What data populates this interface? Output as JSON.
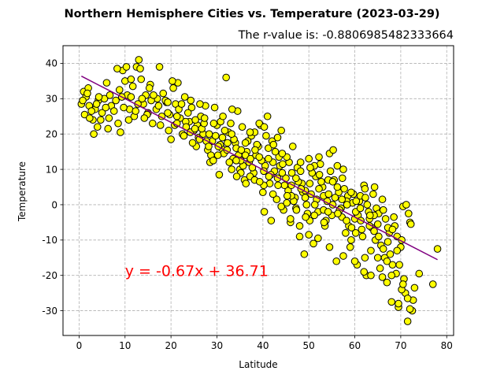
{
  "chart_data": {
    "type": "scatter",
    "title": "Northern Hemisphere Cities vs. Temperature (2023-03-29)",
    "subtitle": "The r-value is: -0.8806985482333664",
    "xlabel": "Latitude",
    "ylabel": "Temperature",
    "xlim": [
      -3.5,
      81.5
    ],
    "ylim": [
      -37,
      45
    ],
    "xticks": [
      0,
      10,
      20,
      30,
      40,
      50,
      60,
      70,
      80
    ],
    "yticks": [
      -30,
      -20,
      -10,
      0,
      10,
      20,
      30,
      40
    ],
    "grid": true,
    "marker_color": "#ffff00",
    "marker_edge_color": "#000000",
    "regression": {
      "slope": -0.67,
      "intercept": 36.71,
      "x_range": [
        0.5,
        78
      ],
      "color": "#800080",
      "equation": "y = -0.67x + 36.71",
      "equation_color": "#ff0000",
      "equation_position": [
        10,
        -20
      ]
    },
    "points": [
      [
        0.5,
        28.5
      ],
      [
        1.0,
        32.0
      ],
      [
        1.2,
        25.5
      ],
      [
        1.5,
        30.5
      ],
      [
        2.0,
        33.0
      ],
      [
        2.2,
        28.0
      ],
      [
        3.0,
        24.0
      ],
      [
        3.5,
        27.0
      ],
      [
        3.2,
        20.0
      ],
      [
        4.0,
        22.0
      ],
      [
        4.2,
        29.5
      ],
      [
        5.0,
        26.0
      ],
      [
        5.5,
        30.0
      ],
      [
        6.0,
        34.5
      ],
      [
        6.5,
        24.5
      ],
      [
        7.0,
        28.0
      ],
      [
        8.0,
        29.5
      ],
      [
        8.5,
        23.0
      ],
      [
        9.0,
        20.5
      ],
      [
        9.5,
        38.0
      ],
      [
        10.0,
        35.0
      ],
      [
        10.5,
        31.0
      ],
      [
        11.0,
        27.0
      ],
      [
        12.0,
        25.0
      ],
      [
        12.5,
        39.0
      ],
      [
        13.0,
        41.0
      ],
      [
        13.5,
        35.5
      ],
      [
        14.0,
        28.5
      ],
      [
        14.5,
        31.0
      ],
      [
        15.0,
        26.0
      ],
      [
        15.5,
        34.0
      ],
      [
        16.0,
        23.0
      ],
      [
        17.0,
        30.0
      ],
      [
        17.5,
        39.0
      ],
      [
        18.0,
        25.0
      ],
      [
        19.0,
        29.0
      ],
      [
        19.5,
        21.0
      ],
      [
        20.0,
        18.5
      ],
      [
        20.5,
        33.0
      ],
      [
        21.0,
        28.5
      ],
      [
        21.5,
        34.5
      ],
      [
        22.0,
        24.5
      ],
      [
        22.5,
        20.0
      ],
      [
        23.0,
        30.5
      ],
      [
        24.0,
        23.5
      ],
      [
        24.5,
        27.5
      ],
      [
        25.0,
        21.0
      ],
      [
        25.5,
        16.5
      ],
      [
        26.0,
        19.0
      ],
      [
        26.5,
        25.0
      ],
      [
        27.0,
        20.0
      ],
      [
        27.5,
        28.0
      ],
      [
        28.0,
        15.5
      ],
      [
        28.5,
        12.0
      ],
      [
        29.0,
        18.0
      ],
      [
        29.5,
        27.5
      ],
      [
        30.0,
        22.5
      ],
      [
        30.5,
        8.5
      ],
      [
        31.0,
        16.0
      ],
      [
        31.5,
        14.5
      ],
      [
        32.0,
        36.0
      ],
      [
        32.5,
        20.5
      ],
      [
        33.0,
        23.0
      ],
      [
        33.5,
        13.0
      ],
      [
        34.0,
        17.5
      ],
      [
        34.5,
        26.5
      ],
      [
        35.0,
        10.0
      ],
      [
        35.5,
        22.0
      ],
      [
        36.0,
        7.0
      ],
      [
        36.5,
        15.0
      ],
      [
        37.0,
        12.0
      ],
      [
        37.5,
        19.5
      ],
      [
        38.0,
        9.0
      ],
      [
        38.5,
        14.0
      ],
      [
        39.0,
        16.5
      ],
      [
        39.5,
        22.5
      ],
      [
        40.0,
        3.5
      ],
      [
        40.5,
        11.0
      ],
      [
        41.0,
        25.0
      ],
      [
        41.5,
        6.0
      ],
      [
        42.0,
        18.0
      ],
      [
        42.5,
        9.5
      ],
      [
        43.0,
        1.5
      ],
      [
        43.5,
        13.5
      ],
      [
        44.0,
        21.0
      ],
      [
        44.5,
        -1.5
      ],
      [
        45.0,
        7.5
      ],
      [
        45.5,
        4.0
      ],
      [
        46.0,
        -5.0
      ],
      [
        46.5,
        16.5
      ],
      [
        47.0,
        2.0
      ],
      [
        47.5,
        10.5
      ],
      [
        48.0,
        -9.0
      ],
      [
        48.5,
        6.0
      ],
      [
        49.0,
        -14.0
      ],
      [
        49.5,
        0.0
      ],
      [
        50.0,
        13.0
      ],
      [
        50.5,
        3.0
      ],
      [
        51.0,
        -11.0
      ],
      [
        51.5,
        8.0
      ],
      [
        52.0,
        -2.0
      ],
      [
        52.5,
        11.5
      ],
      [
        53.0,
        5.0
      ],
      [
        53.5,
        -6.0
      ],
      [
        54.0,
        1.0
      ],
      [
        54.5,
        14.5
      ],
      [
        55.0,
        -3.0
      ],
      [
        55.5,
        7.0
      ],
      [
        56.0,
        -16.0
      ],
      [
        56.5,
        3.5
      ],
      [
        57.0,
        -1.0
      ],
      [
        57.5,
        10.0
      ],
      [
        58.0,
        -8.0
      ],
      [
        58.5,
        2.5
      ],
      [
        59.0,
        -12.0
      ],
      [
        59.5,
        0.5
      ],
      [
        60.0,
        -4.0
      ],
      [
        60.5,
        -17.0
      ],
      [
        61.0,
        1.0
      ],
      [
        61.5,
        -7.0
      ],
      [
        62.0,
        5.5
      ],
      [
        62.5,
        -20.0
      ],
      [
        63.0,
        -2.0
      ],
      [
        63.5,
        -13.0
      ],
      [
        64.0,
        3.0
      ],
      [
        64.5,
        -10.0
      ],
      [
        65.0,
        -5.5
      ],
      [
        65.5,
        -18.0
      ],
      [
        66.0,
        1.5
      ],
      [
        66.5,
        -15.0
      ],
      [
        67.0,
        -22.0
      ],
      [
        67.5,
        -8.0
      ],
      [
        68.0,
        -27.5
      ],
      [
        68.5,
        -3.5
      ],
      [
        69.0,
        -19.5
      ],
      [
        69.5,
        -29.0
      ],
      [
        70.0,
        -12.0
      ],
      [
        70.5,
        -0.5
      ],
      [
        71.0,
        -25.0
      ],
      [
        71.5,
        -33.0
      ],
      [
        72.0,
        -5.0
      ],
      [
        72.5,
        -30.0
      ],
      [
        73.0,
        -23.5
      ],
      [
        74.0,
        -19.5
      ],
      [
        77.0,
        -22.5
      ],
      [
        78.0,
        -12.5
      ],
      [
        0.8,
        29.5
      ],
      [
        1.8,
        31.5
      ],
      [
        2.7,
        26.5
      ],
      [
        3.8,
        28.5
      ],
      [
        4.7,
        24.0
      ],
      [
        5.8,
        27.5
      ],
      [
        6.7,
        31.0
      ],
      [
        7.6,
        26.5
      ],
      [
        8.8,
        32.5
      ],
      [
        9.7,
        27.5
      ],
      [
        10.8,
        24.0
      ],
      [
        11.7,
        33.5
      ],
      [
        12.8,
        28.5
      ],
      [
        13.7,
        30.0
      ],
      [
        14.8,
        25.5
      ],
      [
        15.7,
        29.5
      ],
      [
        16.8,
        27.0
      ],
      [
        17.7,
        22.5
      ],
      [
        18.8,
        29.5
      ],
      [
        19.7,
        25.5
      ],
      [
        20.8,
        22.5
      ],
      [
        21.7,
        27.0
      ],
      [
        22.8,
        19.5
      ],
      [
        23.7,
        26.0
      ],
      [
        24.7,
        17.5
      ],
      [
        25.7,
        22.5
      ],
      [
        26.7,
        21.5
      ],
      [
        27.7,
        18.0
      ],
      [
        28.7,
        14.0
      ],
      [
        29.7,
        19.5
      ],
      [
        30.7,
        17.0
      ],
      [
        31.7,
        21.0
      ],
      [
        32.7,
        12.0
      ],
      [
        33.7,
        18.5
      ],
      [
        34.7,
        14.0
      ],
      [
        35.7,
        11.0
      ],
      [
        36.7,
        18.0
      ],
      [
        37.7,
        10.5
      ],
      [
        38.7,
        17.0
      ],
      [
        39.7,
        12.5
      ],
      [
        40.7,
        19.5
      ],
      [
        41.7,
        8.5
      ],
      [
        42.7,
        15.0
      ],
      [
        43.7,
        11.0
      ],
      [
        44.7,
        5.5
      ],
      [
        45.7,
        12.0
      ],
      [
        46.7,
        1.0
      ],
      [
        47.7,
        6.5
      ],
      [
        48.7,
        3.5
      ],
      [
        49.7,
        -2.5
      ],
      [
        50.7,
        9.0
      ],
      [
        51.7,
        1.5
      ],
      [
        52.7,
        6.5
      ],
      [
        53.7,
        -4.5
      ],
      [
        54.7,
        9.5
      ],
      [
        55.7,
        2.0
      ],
      [
        56.7,
        -1.5
      ],
      [
        57.7,
        4.5
      ],
      [
        58.7,
        -6.0
      ],
      [
        59.7,
        3.0
      ],
      [
        60.7,
        -3.0
      ],
      [
        61.7,
        -9.0
      ],
      [
        62.7,
        0.0
      ],
      [
        63.7,
        -6.5
      ],
      [
        64.7,
        -1.0
      ],
      [
        65.7,
        -11.5
      ],
      [
        66.7,
        -4.0
      ],
      [
        67.7,
        -14.0
      ],
      [
        68.7,
        -6.0
      ],
      [
        69.7,
        -17.0
      ],
      [
        70.7,
        -21.0
      ],
      [
        71.7,
        -2.5
      ],
      [
        72.7,
        -27.0
      ],
      [
        30.2,
        14.0
      ],
      [
        30.8,
        23.5
      ],
      [
        33.2,
        20.0
      ],
      [
        34.2,
        16.0
      ],
      [
        35.2,
        12.5
      ],
      [
        36.2,
        17.5
      ],
      [
        37.2,
        8.0
      ],
      [
        38.2,
        20.5
      ],
      [
        39.2,
        13.5
      ],
      [
        40.2,
        5.5
      ],
      [
        41.2,
        16.0
      ],
      [
        42.2,
        12.0
      ],
      [
        43.2,
        19.0
      ],
      [
        44.2,
        9.0
      ],
      [
        45.2,
        13.5
      ],
      [
        46.2,
        2.5
      ],
      [
        47.2,
        7.5
      ],
      [
        48.2,
        12.0
      ],
      [
        49.2,
        4.0
      ],
      [
        50.2,
        -4.5
      ],
      [
        51.2,
        11.0
      ],
      [
        52.2,
        4.5
      ],
      [
        53.2,
        -1.5
      ],
      [
        54.2,
        7.0
      ],
      [
        55.2,
        0.0
      ],
      [
        56.2,
        5.0
      ],
      [
        57.2,
        -3.5
      ],
      [
        58.2,
        1.0
      ],
      [
        59.2,
        -10.0
      ],
      [
        60.2,
        -2.0
      ],
      [
        61.2,
        2.5
      ],
      [
        62.2,
        -15.0
      ],
      [
        63.2,
        -4.0
      ],
      [
        64.2,
        -7.5
      ],
      [
        65.2,
        -2.5
      ],
      [
        66.2,
        -12.5
      ],
      [
        67.2,
        -6.5
      ],
      [
        68.2,
        -17.0
      ],
      [
        69.2,
        -9.0
      ],
      [
        70.2,
        -24.0
      ],
      [
        40.3,
        -2.0
      ],
      [
        41.8,
        -4.5
      ],
      [
        44.0,
        -0.5
      ],
      [
        46.0,
        -4.0
      ],
      [
        48.0,
        -6.0
      ],
      [
        50.0,
        -8.5
      ],
      [
        52.0,
        -9.5
      ],
      [
        54.5,
        -12.0
      ],
      [
        57.5,
        -14.5
      ],
      [
        60.0,
        -16.0
      ],
      [
        62.0,
        -19.0
      ],
      [
        63.5,
        -20.0
      ],
      [
        65.0,
        -15.0
      ],
      [
        66.0,
        -20.5
      ],
      [
        67.0,
        -16.0
      ],
      [
        68.0,
        -20.0
      ],
      [
        69.5,
        -28.0
      ],
      [
        70.5,
        -22.5
      ],
      [
        71.5,
        -26.5
      ],
      [
        72.0,
        -29.5
      ],
      [
        10.3,
        39.0
      ],
      [
        11.3,
        30.5
      ],
      [
        12.3,
        26.5
      ],
      [
        14.2,
        24.5
      ],
      [
        16.2,
        31.0
      ],
      [
        18.3,
        31.5
      ],
      [
        19.3,
        29.0
      ],
      [
        21.3,
        25.0
      ],
      [
        23.2,
        23.5
      ],
      [
        24.2,
        20.5
      ],
      [
        25.2,
        21.5
      ],
      [
        26.2,
        18.5
      ],
      [
        27.2,
        23.0
      ],
      [
        28.2,
        16.5
      ],
      [
        29.2,
        12.5
      ],
      [
        31.2,
        19.0
      ],
      [
        32.2,
        15.5
      ],
      [
        33.2,
        10.0
      ],
      [
        34.2,
        12.5
      ],
      [
        35.2,
        9.0
      ],
      [
        36.2,
        14.0
      ],
      [
        37.2,
        20.5
      ],
      [
        38.2,
        7.0
      ],
      [
        39.2,
        23.0
      ],
      [
        40.2,
        9.5
      ],
      [
        41.2,
        13.0
      ],
      [
        42.2,
        3.0
      ],
      [
        43.2,
        7.5
      ],
      [
        44.2,
        14.5
      ],
      [
        45.2,
        0.5
      ],
      [
        46.2,
        5.5
      ],
      [
        47.2,
        -1.0
      ],
      [
        48.2,
        9.5
      ],
      [
        49.2,
        2.0
      ],
      [
        50.2,
        6.0
      ],
      [
        51.2,
        -3.0
      ],
      [
        52.2,
        13.5
      ],
      [
        53.2,
        2.5
      ],
      [
        54.2,
        -2.0
      ],
      [
        55.2,
        6.5
      ],
      [
        56.2,
        11.0
      ],
      [
        57.2,
        1.5
      ],
      [
        58.2,
        -4.5
      ],
      [
        59.2,
        3.5
      ],
      [
        60.2,
        -8.0
      ],
      [
        61.2,
        -1.0
      ],
      [
        62.2,
        4.5
      ],
      [
        63.2,
        -6.0
      ],
      [
        64.2,
        -3.0
      ],
      [
        65.2,
        -9.0
      ],
      [
        66.2,
        -1.5
      ],
      [
        67.2,
        -10.5
      ],
      [
        68.2,
        -7.0
      ],
      [
        69.2,
        -13.0
      ],
      [
        70.2,
        -10.0
      ],
      [
        71.2,
        0.0
      ],
      [
        72.2,
        -5.5
      ],
      [
        2.3,
        24.5
      ],
      [
        4.3,
        30.5
      ],
      [
        6.3,
        21.5
      ],
      [
        8.3,
        38.5
      ],
      [
        9.3,
        30.5
      ],
      [
        11.3,
        35.5
      ],
      [
        13.3,
        38.5
      ],
      [
        15.3,
        33.0
      ],
      [
        17.3,
        28.0
      ],
      [
        19.3,
        26.0
      ],
      [
        20.3,
        35.0
      ],
      [
        21.3,
        23.0
      ],
      [
        22.3,
        28.5
      ],
      [
        23.3,
        22.0
      ],
      [
        24.3,
        29.5
      ],
      [
        25.3,
        24.0
      ],
      [
        26.3,
        28.5
      ],
      [
        27.3,
        24.5
      ],
      [
        28.3,
        20.0
      ],
      [
        29.3,
        23.0
      ],
      [
        30.3,
        16.5
      ],
      [
        31.3,
        25.0
      ],
      [
        32.3,
        17.5
      ],
      [
        33.3,
        27.0
      ],
      [
        34.3,
        8.0
      ],
      [
        35.3,
        15.5
      ],
      [
        36.3,
        6.0
      ],
      [
        37.3,
        13.0
      ],
      [
        38.3,
        15.5
      ],
      [
        39.3,
        6.5
      ],
      [
        40.3,
        22.0
      ],
      [
        41.3,
        8.0
      ],
      [
        42.3,
        17.0
      ],
      [
        43.3,
        5.5
      ],
      [
        44.3,
        11.5
      ],
      [
        45.3,
        2.5
      ],
      [
        46.3,
        9.0
      ],
      [
        47.3,
        -1.5
      ],
      [
        48.3,
        4.5
      ],
      [
        49.3,
        -3.5
      ],
      [
        50.3,
        10.5
      ],
      [
        51.3,
        0.0
      ],
      [
        52.3,
        8.5
      ],
      [
        53.3,
        -5.0
      ],
      [
        54.3,
        3.0
      ],
      [
        55.3,
        15.5
      ],
      [
        56.3,
        -2.5
      ],
      [
        57.3,
        7.5
      ],
      [
        58.3,
        0.0
      ],
      [
        59.3,
        -6.5
      ],
      [
        60.3,
        1.0
      ],
      [
        61.3,
        -4.5
      ],
      [
        62.3,
        2.0
      ],
      [
        63.3,
        -3.0
      ],
      [
        64.3,
        5.0
      ]
    ]
  }
}
